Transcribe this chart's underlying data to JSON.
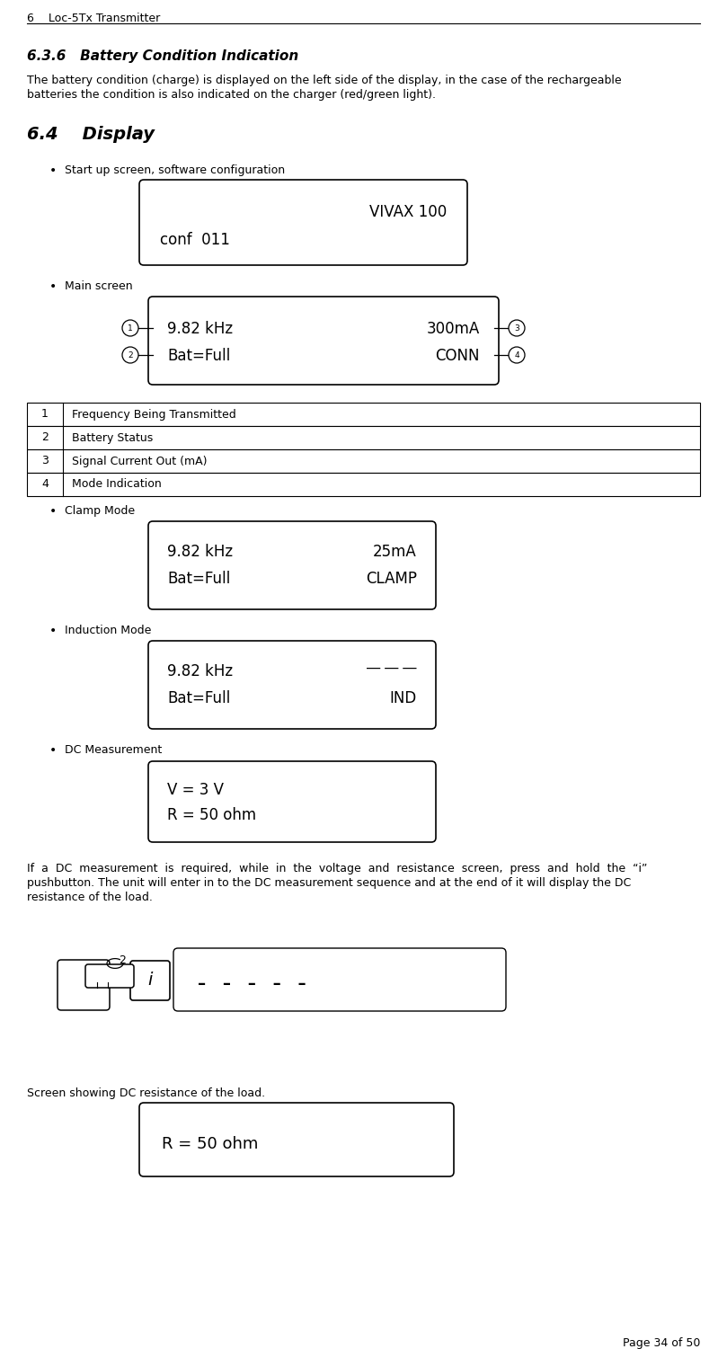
{
  "page_header": "6    Loc-5Tx Transmitter",
  "section_636_title": "6.3.6   Battery Condition Indication",
  "section_64_title": "6.4    Display",
  "bullet_startup": "Start up screen, software configuration",
  "startup_line1": "VIVAX 100",
  "startup_line2": "conf  011",
  "bullet_main": "Main screen",
  "main_line1_left": "9.82 kHz",
  "main_line1_right": "300mA",
  "main_line2_left": "Bat=Full",
  "main_line2_right": "CONN",
  "table_rows": [
    [
      "1",
      "Frequency Being Transmitted"
    ],
    [
      "2",
      "Battery Status"
    ],
    [
      "3",
      "Signal Current Out (mA)"
    ],
    [
      "4",
      "Mode Indication"
    ]
  ],
  "bullet_clamp": "Clamp Mode",
  "clamp_line1_left": "9.82 kHz",
  "clamp_line1_right": "25mA",
  "clamp_line2_left": "Bat=Full",
  "clamp_line2_right": "CLAMP",
  "bullet_induction": "Induction Mode",
  "ind_line1_left": "9.82 kHz",
  "ind_line2_left": "Bat=Full",
  "ind_line2_right": "IND",
  "bullet_dc": "DC Measurement",
  "dc_line1": "V = 3 V",
  "dc_line2": "R = 50 ohm",
  "para636_line1": "The battery condition (charge) is displayed on the left side of the display, in the case of the rechargeable",
  "para636_line2": "batteries the condition is also indicated on the charger (red/green light).",
  "para_dc_line1": "If  a  DC  measurement  is  required,  while  in  the  voltage  and  resistance  screen,  press  and  hold  the  “i”",
  "para_dc_line2": "pushbutton. The unit will enter in to the DC measurement sequence and at the end of it will display the DC",
  "para_dc_line3": "resistance of the load.",
  "screen_caption": "Screen showing DC resistance of the load.",
  "final_screen_line": "R = 50 ohm",
  "page_footer": "Page 34 of 50",
  "bg_color": "#ffffff",
  "text_color": "#000000",
  "box_edge_color": "#000000",
  "table_border_color": "#000000",
  "header_line_color": "#000000"
}
